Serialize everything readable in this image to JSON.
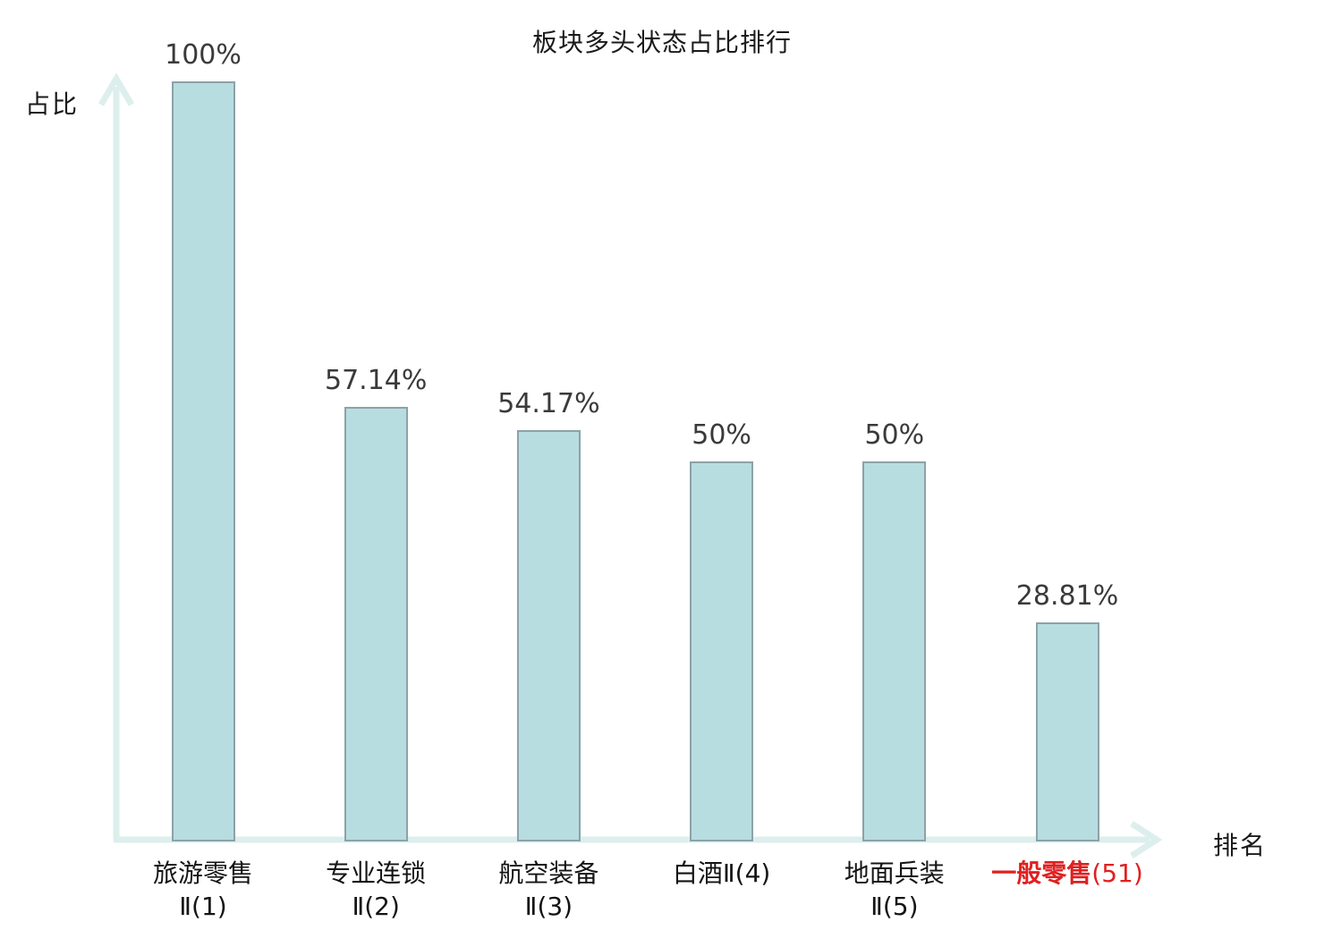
{
  "title": "板块多头状态占比排行",
  "axes": {
    "y_label": "占比",
    "x_label": "排名"
  },
  "chart_data": {
    "type": "bar",
    "title": "板块多头状态占比排行",
    "xlabel": "排名",
    "ylabel": "占比",
    "ylim": [
      0,
      100
    ],
    "grid": false,
    "legend": false,
    "categories": [
      "旅游零售Ⅱ(1)",
      "专业连锁Ⅱ(2)",
      "航空装备Ⅱ(3)",
      "白酒Ⅱ(4)",
      "地面兵装Ⅱ(5)",
      "一般零售(51)"
    ],
    "values": [
      100,
      57.14,
      54.17,
      50,
      50,
      28.81
    ],
    "bars": [
      {
        "label": "旅游零售",
        "label_suffix": "",
        "label_line2": "Ⅱ(1)",
        "value": 100,
        "value_label": "100%",
        "highlight": false
      },
      {
        "label": "专业连锁",
        "label_suffix": "",
        "label_line2": "Ⅱ(2)",
        "value": 57.14,
        "value_label": "57.14%",
        "highlight": false
      },
      {
        "label": "航空装备",
        "label_suffix": "",
        "label_line2": "Ⅱ(3)",
        "value": 54.17,
        "value_label": "54.17%",
        "highlight": false
      },
      {
        "label": "白酒Ⅱ(4)",
        "label_suffix": "",
        "label_line2": "",
        "value": 50,
        "value_label": "50%",
        "highlight": false
      },
      {
        "label": "地面兵装",
        "label_suffix": "",
        "label_line2": "Ⅱ(5)",
        "value": 50,
        "value_label": "50%",
        "highlight": false
      },
      {
        "label": "一般零售",
        "label_suffix": "(51)",
        "label_line2": "",
        "value": 28.81,
        "value_label": "28.81%",
        "highlight": true
      }
    ],
    "colors": {
      "bar_fill": "#b8dde0",
      "bar_border": "#8ca2a8",
      "axis": "#ddefec",
      "value_label": "#3a3a3a",
      "category_label": "#141414",
      "highlight": "#e02020"
    }
  }
}
